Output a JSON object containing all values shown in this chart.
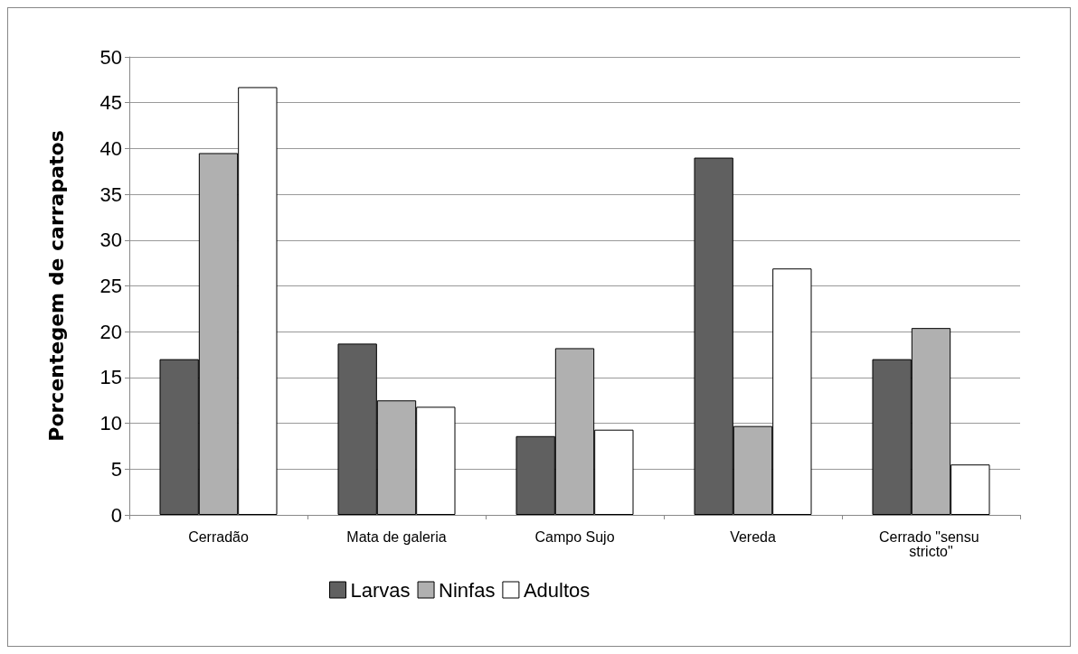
{
  "chart_data": {
    "type": "bar",
    "ylabel": "Porcentegem de carrapatos",
    "categories": [
      "Cerradão",
      "Mata de galeria",
      "Campo Sujo",
      "Vereda",
      "Cerrado \"sensu stricto\""
    ],
    "series": [
      {
        "name": "Larvas",
        "color": "#606060",
        "values": [
          17.0,
          18.7,
          8.6,
          39.0,
          17.0
        ]
      },
      {
        "name": "Ninfas",
        "color": "#b0b0b0",
        "values": [
          39.5,
          12.5,
          18.2,
          9.7,
          20.4
        ]
      },
      {
        "name": "Adultos",
        "color": "#ffffff",
        "values": [
          46.7,
          11.8,
          9.3,
          26.9,
          5.5
        ]
      }
    ],
    "ylim": [
      0,
      50
    ],
    "yticks": [
      0,
      5,
      10,
      15,
      20,
      25,
      30,
      35,
      40,
      45,
      50
    ],
    "grid": "y",
    "legend": "bottom"
  }
}
